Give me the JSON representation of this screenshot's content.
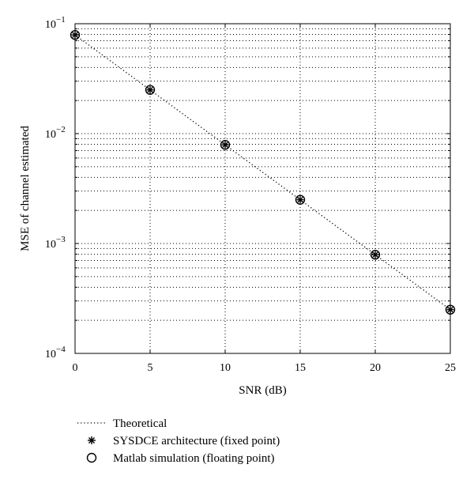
{
  "chart_data": {
    "type": "line",
    "title": "",
    "xlabel": "SNR (dB)",
    "ylabel": "MSE of channel estimated",
    "x_scale": "linear",
    "y_scale": "log",
    "xlim": [
      0,
      25
    ],
    "ylim": [
      0.0001,
      0.1
    ],
    "x_ticks": [
      0,
      5,
      10,
      15,
      20,
      25
    ],
    "x_tick_labels": [
      "0",
      "5",
      "10",
      "15",
      "20",
      "25"
    ],
    "y_ticks": [
      0.0001,
      0.001,
      0.01,
      0.1
    ],
    "y_tick_labels": [
      {
        "base": "10",
        "exp": "−4"
      },
      {
        "base": "10",
        "exp": "−3"
      },
      {
        "base": "10",
        "exp": "−2"
      },
      {
        "base": "10",
        "exp": "−1"
      }
    ],
    "grid": true,
    "legend_position": "bottom-left-below-axes",
    "series": [
      {
        "name": "Theoretical",
        "style": "dotted-line",
        "color": "#000000",
        "x": [
          0,
          25
        ],
        "y": [
          0.079,
          0.00025
        ]
      },
      {
        "name": "SYSDCE architecture (fixed point)",
        "style": "asterisk-marker",
        "color": "#000000",
        "x": [
          0,
          5,
          10,
          15,
          20,
          25
        ],
        "y": [
          0.079,
          0.025,
          0.0079,
          0.0025,
          0.00079,
          0.00025
        ]
      },
      {
        "name": "Matlab simulation (floating point)",
        "style": "circle-marker",
        "color": "#000000",
        "x": [
          0,
          5,
          10,
          15,
          20,
          25
        ],
        "y": [
          0.079,
          0.025,
          0.0079,
          0.0025,
          0.00079,
          0.00025
        ]
      }
    ]
  }
}
